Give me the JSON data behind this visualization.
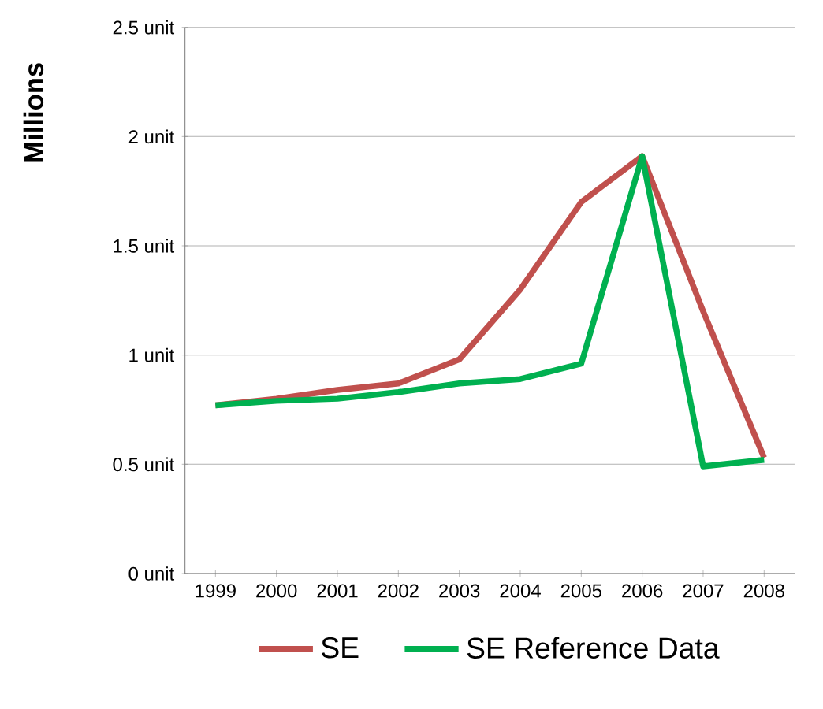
{
  "chart_data": {
    "type": "line",
    "ylabel": "Millions",
    "categories": [
      "1999",
      "2000",
      "2001",
      "2002",
      "2003",
      "2004",
      "2005",
      "2006",
      "2007",
      "2008"
    ],
    "series": [
      {
        "name": "SE",
        "color": "#c0504d",
        "values": [
          0.77,
          0.8,
          0.84,
          0.87,
          0.98,
          1.3,
          1.7,
          1.91,
          1.2,
          0.53
        ]
      },
      {
        "name": "SE Reference Data",
        "color": "#00b050",
        "values": [
          0.77,
          0.79,
          0.8,
          0.83,
          0.87,
          0.89,
          0.96,
          1.91,
          0.49,
          0.52
        ]
      }
    ],
    "ylim": [
      0,
      2.5
    ],
    "yticks": [
      {
        "value": 0,
        "label": "0  unit"
      },
      {
        "value": 0.5,
        "label": "0.5  unit"
      },
      {
        "value": 1,
        "label": "1  unit"
      },
      {
        "value": 1.5,
        "label": "1.5  unit"
      },
      {
        "value": 2,
        "label": "2  unit"
      },
      {
        "value": 2.5,
        "label": "2.5  unit"
      }
    ],
    "grid": "y",
    "legend": "bottom"
  }
}
